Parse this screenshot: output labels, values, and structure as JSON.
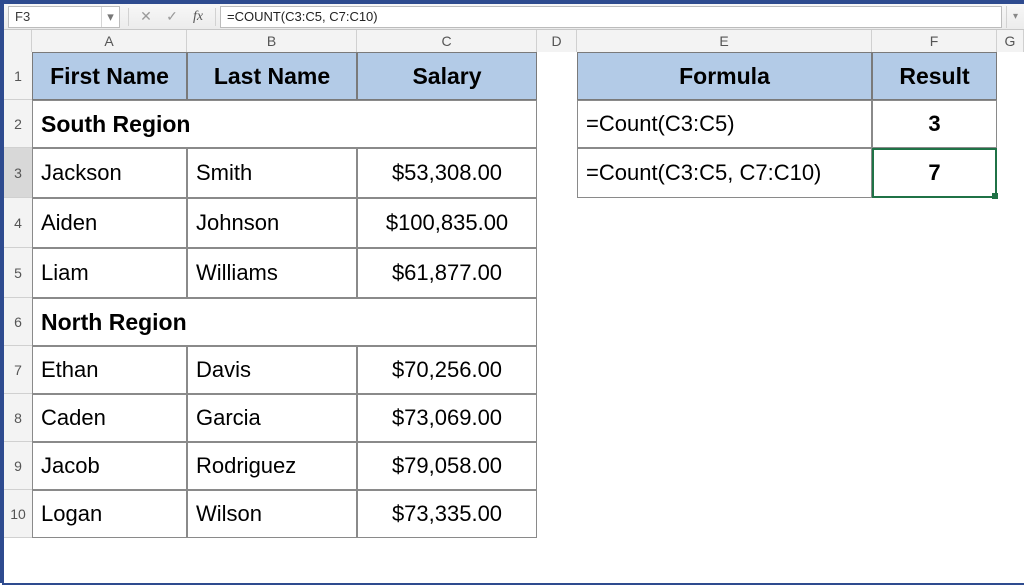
{
  "formula_bar": {
    "cell_ref": "F3",
    "formula_text": "=COUNT(C3:C5, C7:C10)"
  },
  "colors": {
    "header_fill": "#b3cbe7",
    "grid_border": "#8a8a8a",
    "active_border": "#1f7246",
    "app_border": "#2e4b8f",
    "bg": "#ffffff"
  },
  "layout": {
    "row_header_w": 28,
    "col_header_h": 22,
    "cols": {
      "A": 155,
      "B": 170,
      "C": 180,
      "D": 40,
      "E": 295,
      "F": 125,
      "G": 27
    },
    "rows": {
      "1": 48,
      "2": 48,
      "3": 50,
      "4": 50,
      "5": 50,
      "6": 48,
      "7": 48,
      "8": 48,
      "9": 48,
      "10": 48
    }
  },
  "columns": [
    "A",
    "B",
    "C",
    "D",
    "E",
    "F",
    "G"
  ],
  "row_numbers": [
    "1",
    "2",
    "3",
    "4",
    "5",
    "6",
    "7",
    "8",
    "9",
    "10"
  ],
  "selected_row": "3",
  "active_cell": {
    "col": "F",
    "row": "3"
  },
  "headers_left": {
    "A1": "First Name",
    "B1": "Last Name",
    "C1": "Salary"
  },
  "headers_right": {
    "E1": "Formula",
    "F1": "Result"
  },
  "regions": {
    "south": "South Region",
    "north": "North Region"
  },
  "people_south": [
    {
      "first": "Jackson",
      "last": "Smith",
      "salary": "$53,308.00"
    },
    {
      "first": "Aiden",
      "last": "Johnson",
      "salary": "$100,835.00"
    },
    {
      "first": "Liam",
      "last": "Williams",
      "salary": "$61,877.00"
    }
  ],
  "people_north": [
    {
      "first": "Ethan",
      "last": "Davis",
      "salary": "$70,256.00"
    },
    {
      "first": "Caden",
      "last": "Garcia",
      "salary": "$73,069.00"
    },
    {
      "first": "Jacob",
      "last": "Rodriguez",
      "salary": "$79,058.00"
    },
    {
      "first": "Logan",
      "last": "Wilson",
      "salary": "$73,335.00"
    }
  ],
  "formula_table": [
    {
      "formula": "=Count(C3:C5)",
      "result": "3"
    },
    {
      "formula": "=Count(C3:C5, C7:C10)",
      "result": "7"
    }
  ]
}
